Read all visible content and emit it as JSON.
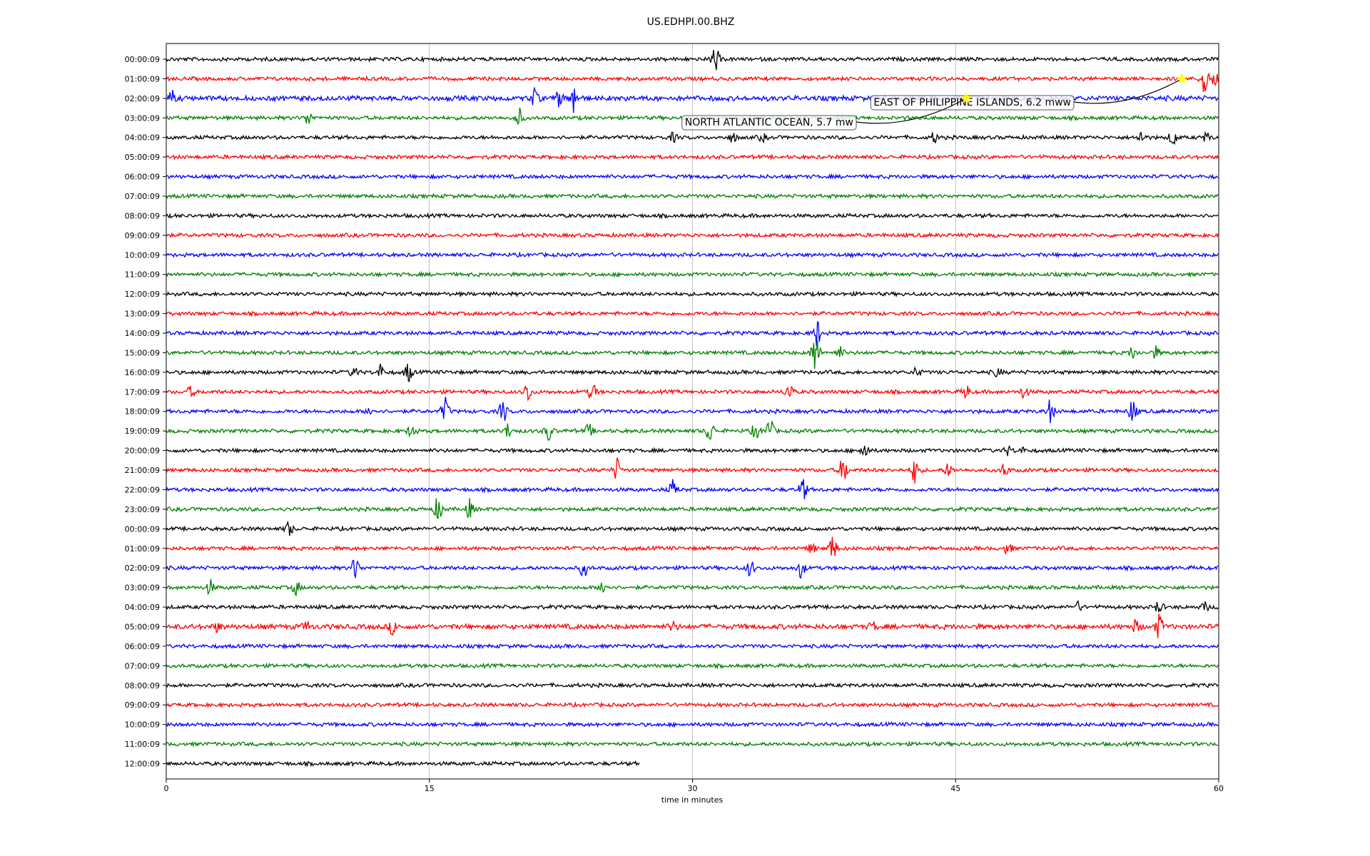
{
  "chart_data": {
    "type": "line",
    "title": "US.EDHPI.00.BHZ",
    "xlabel": "time in minutes",
    "xlim": [
      0,
      60
    ],
    "xticks": [
      0,
      15,
      30,
      45,
      60
    ],
    "grid": true,
    "line_colors": [
      "#000000",
      "#ff0000",
      "#0000ff",
      "#008000"
    ],
    "rows": [
      {
        "label": "00:00:09",
        "amp": 3,
        "end": 60,
        "events": [
          [
            31.3,
            18
          ]
        ]
      },
      {
        "label": "01:00:09",
        "amp": 3,
        "end": 60,
        "events": [
          [
            59.2,
            24
          ],
          [
            59.8,
            10
          ]
        ]
      },
      {
        "label": "02:00:09",
        "amp": 4,
        "end": 60,
        "events": [
          [
            0.3,
            9
          ],
          [
            21.0,
            12
          ],
          [
            22.4,
            10
          ],
          [
            23.2,
            22
          ]
        ]
      },
      {
        "label": "03:00:09",
        "amp": 3,
        "end": 60,
        "events": [
          [
            8.1,
            9
          ],
          [
            20.1,
            13
          ]
        ]
      },
      {
        "label": "04:00:09",
        "amp": 3,
        "end": 60,
        "events": [
          [
            28.9,
            6
          ],
          [
            32.3,
            6
          ],
          [
            34.0,
            5
          ],
          [
            43.8,
            7
          ],
          [
            55.6,
            9
          ],
          [
            57.4,
            12
          ],
          [
            59.3,
            6
          ]
        ]
      },
      {
        "label": "05:00:09",
        "amp": 3,
        "end": 60,
        "events": []
      },
      {
        "label": "06:00:09",
        "amp": 3,
        "end": 60,
        "events": []
      },
      {
        "label": "07:00:09",
        "amp": 3,
        "end": 60,
        "events": []
      },
      {
        "label": "08:00:09",
        "amp": 3,
        "end": 60,
        "events": []
      },
      {
        "label": "09:00:09",
        "amp": 3,
        "end": 60,
        "events": []
      },
      {
        "label": "10:00:09",
        "amp": 3,
        "end": 60,
        "events": []
      },
      {
        "label": "11:00:09",
        "amp": 3,
        "end": 60,
        "events": []
      },
      {
        "label": "12:00:09",
        "amp": 3,
        "end": 60,
        "events": []
      },
      {
        "label": "13:00:09",
        "amp": 3,
        "end": 60,
        "events": []
      },
      {
        "label": "14:00:09",
        "amp": 3,
        "end": 60,
        "events": [
          [
            37.1,
            18
          ]
        ]
      },
      {
        "label": "15:00:09",
        "amp": 3,
        "end": 60,
        "events": [
          [
            37.0,
            32
          ],
          [
            38.4,
            8
          ],
          [
            55.1,
            8
          ],
          [
            56.4,
            8
          ]
        ]
      },
      {
        "label": "16:00:09",
        "amp": 3,
        "end": 60,
        "events": [
          [
            10.7,
            8
          ],
          [
            12.2,
            10
          ],
          [
            13.8,
            14
          ],
          [
            42.8,
            7
          ],
          [
            47.4,
            6
          ]
        ]
      },
      {
        "label": "17:00:09",
        "amp": 3,
        "end": 60,
        "events": [
          [
            1.4,
            7
          ],
          [
            20.6,
            14
          ],
          [
            24.3,
            13
          ],
          [
            35.5,
            12
          ],
          [
            45.6,
            9
          ],
          [
            48.9,
            9
          ]
        ]
      },
      {
        "label": "18:00:09",
        "amp": 3,
        "end": 60,
        "events": [
          [
            11.6,
            6
          ],
          [
            15.9,
            18
          ],
          [
            19.2,
            16
          ],
          [
            50.4,
            16
          ],
          [
            55.1,
            18
          ]
        ]
      },
      {
        "label": "19:00:09",
        "amp": 3,
        "end": 60,
        "events": [
          [
            14.0,
            10
          ],
          [
            19.5,
            10
          ],
          [
            21.8,
            13
          ],
          [
            24.1,
            9
          ],
          [
            31.0,
            17
          ],
          [
            33.6,
            11
          ],
          [
            34.4,
            18
          ]
        ]
      },
      {
        "label": "20:00:09",
        "amp": 3,
        "end": 60,
        "events": [
          [
            39.8,
            13
          ],
          [
            48.0,
            6
          ],
          [
            48.7,
            5
          ]
        ]
      },
      {
        "label": "21:00:09",
        "amp": 3,
        "end": 60,
        "events": [
          [
            25.7,
            16
          ],
          [
            38.6,
            20
          ],
          [
            42.7,
            20
          ],
          [
            44.6,
            9
          ],
          [
            47.8,
            9
          ]
        ]
      },
      {
        "label": "22:00:09",
        "amp": 3,
        "end": 60,
        "events": [
          [
            28.9,
            13
          ],
          [
            36.3,
            16
          ]
        ]
      },
      {
        "label": "23:00:09",
        "amp": 3,
        "end": 60,
        "events": [
          [
            15.5,
            17
          ],
          [
            17.3,
            13
          ]
        ]
      },
      {
        "label": "00:00:09",
        "amp": 3,
        "end": 60,
        "events": [
          [
            7.0,
            10
          ]
        ]
      },
      {
        "label": "01:00:09",
        "amp": 3,
        "end": 60,
        "events": [
          [
            36.8,
            7
          ],
          [
            38.0,
            18
          ],
          [
            48.0,
            9
          ]
        ]
      },
      {
        "label": "02:00:09",
        "amp": 3,
        "end": 60,
        "events": [
          [
            10.8,
            17
          ],
          [
            23.8,
            12
          ],
          [
            33.3,
            11
          ],
          [
            36.2,
            13
          ]
        ]
      },
      {
        "label": "03:00:09",
        "amp": 3,
        "end": 60,
        "events": [
          [
            2.5,
            10
          ],
          [
            7.4,
            10
          ],
          [
            24.9,
            11
          ]
        ]
      },
      {
        "label": "04:00:09",
        "amp": 3,
        "end": 60,
        "events": [
          [
            52.0,
            6
          ],
          [
            56.6,
            9
          ],
          [
            59.2,
            6
          ]
        ]
      },
      {
        "label": "05:00:09",
        "amp": 4,
        "end": 60,
        "events": [
          [
            2.9,
            6
          ],
          [
            8.0,
            6
          ],
          [
            12.9,
            9
          ],
          [
            28.9,
            7
          ],
          [
            40.3,
            6
          ],
          [
            55.3,
            9
          ],
          [
            56.6,
            16
          ]
        ]
      },
      {
        "label": "06:00:09",
        "amp": 3,
        "end": 60,
        "events": []
      },
      {
        "label": "07:00:09",
        "amp": 3,
        "end": 60,
        "events": []
      },
      {
        "label": "08:00:09",
        "amp": 3,
        "end": 60,
        "events": []
      },
      {
        "label": "09:00:09",
        "amp": 3,
        "end": 60,
        "events": []
      },
      {
        "label": "10:00:09",
        "amp": 3,
        "end": 60,
        "events": []
      },
      {
        "label": "11:00:09",
        "amp": 3,
        "end": 60,
        "events": []
      },
      {
        "label": "12:00:09",
        "amp": 3,
        "end": 27,
        "events": []
      }
    ],
    "annotations": [
      {
        "text": "EAST OF PHILIPPINE ISLANDS, 6.2 mww",
        "row": 1,
        "minute": 57.9,
        "star_color": "#ffff00"
      },
      {
        "text": "NORTH ATLANTIC OCEAN, 5.7 mw",
        "row": 2,
        "minute": 45.6,
        "star_color": "#ffff00"
      }
    ]
  }
}
